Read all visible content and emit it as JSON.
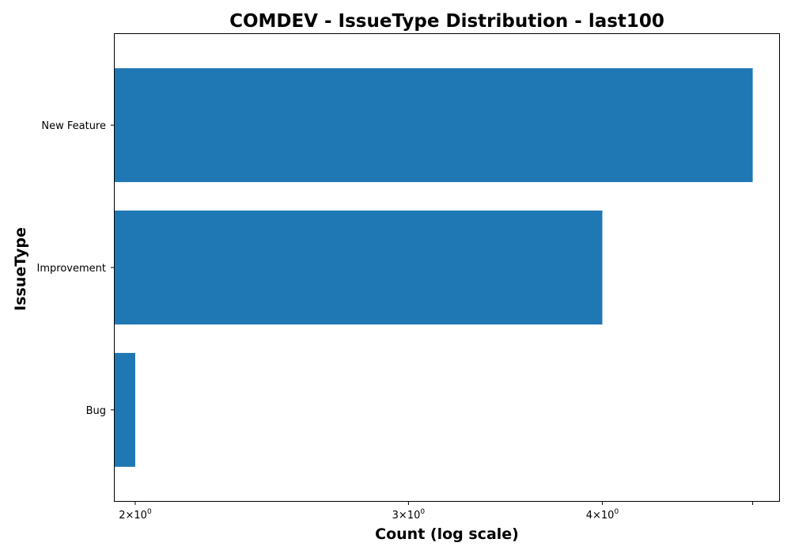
{
  "chart_data": {
    "type": "bar",
    "orientation": "horizontal",
    "title": "COMDEV - IssueType Distribution - last100",
    "xlabel": "Count (log scale)",
    "ylabel": "IssueType",
    "x_scale": "log",
    "xlim": [
      1.94,
      5.2
    ],
    "categories": [
      "Bug",
      "Improvement",
      "New Feature"
    ],
    "values": [
      2,
      4,
      5
    ],
    "x_ticks": [
      {
        "value": 2,
        "mantissa": "2",
        "base": "10",
        "exponent": "0"
      },
      {
        "value": 3,
        "mantissa": "3",
        "base": "10",
        "exponent": "0"
      },
      {
        "value": 4,
        "mantissa": "4",
        "base": "10",
        "exponent": "0"
      },
      {
        "value": 5,
        "mantissa": "",
        "base": "",
        "exponent": ""
      }
    ],
    "bar_color": "#1f77b4",
    "grid": false
  }
}
